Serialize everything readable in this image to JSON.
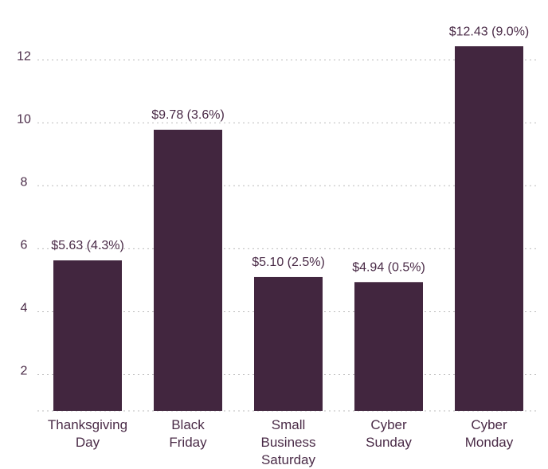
{
  "chart_data": {
    "type": "bar",
    "categories": [
      "Thanksgiving Day",
      "Black Friday",
      "Small Business Saturday",
      "Cyber Sunday",
      "Cyber Monday"
    ],
    "values": [
      5.63,
      9.78,
      5.1,
      4.94,
      12.43
    ],
    "value_labels": [
      "$5.63 (4.3%)",
      "$9.78 (3.6%)",
      "$5.10 (2.5%)",
      "$4.94 (0.5%)",
      "$12.43 (9.0%)"
    ],
    "color": "#42263f",
    "ylim": [
      0.85,
      13.9
    ],
    "yticks": [
      2,
      4,
      6,
      8,
      10,
      12
    ],
    "grid": true
  }
}
